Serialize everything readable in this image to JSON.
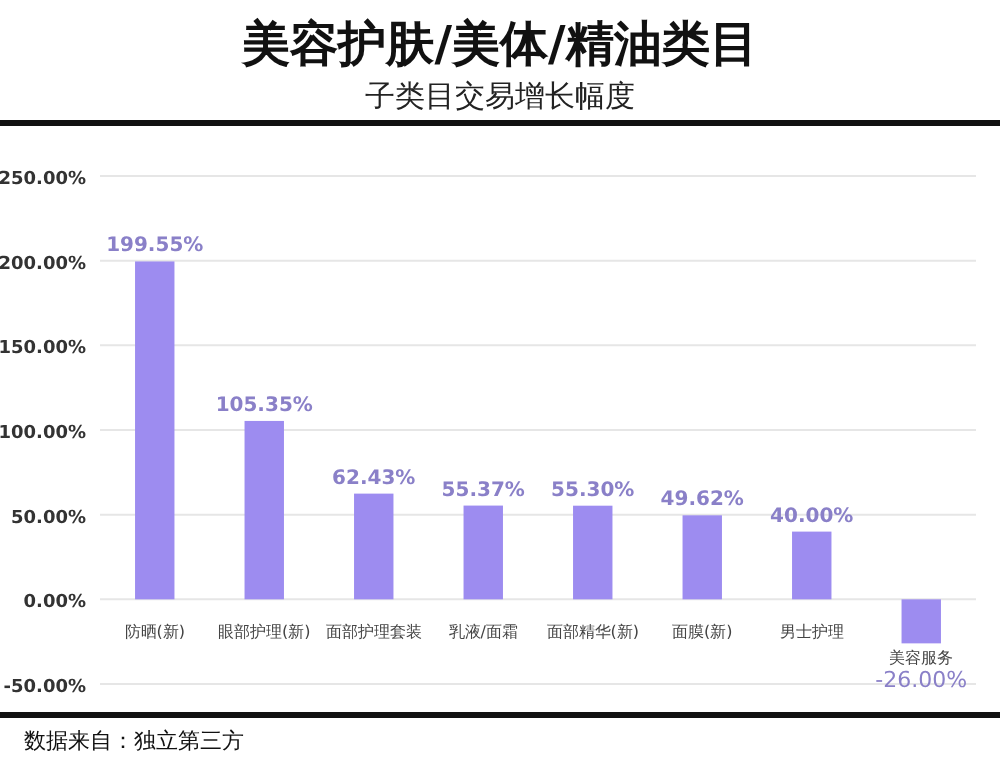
{
  "chart_data": {
    "type": "bar",
    "title": "美容护肤/美体/精油类目",
    "subtitle": "子类目交易增长幅度",
    "categories": [
      "防晒(新)",
      "眼部护理(新)",
      "面部护理套装",
      "乳液/面霜",
      "面部精华(新)",
      "面膜(新)",
      "男士护理",
      "美容服务"
    ],
    "values": [
      199.55,
      105.35,
      62.43,
      55.37,
      55.3,
      49.62,
      40.0,
      -26.0
    ],
    "value_labels": [
      "199.55%",
      "105.35%",
      "62.43%",
      "55.37%",
      "55.30%",
      "49.62%",
      "40.00%",
      "-26.00%"
    ],
    "color": "#9d8cf0",
    "ylim": [
      -50,
      250
    ],
    "yticks": [
      {
        "value": -50,
        "label": "-50.00%"
      },
      {
        "value": 0,
        "label": "0.00%"
      },
      {
        "value": 50,
        "label": "50.00%"
      },
      {
        "value": 100,
        "label": "100.00%"
      },
      {
        "value": 150,
        "label": "150.00%"
      },
      {
        "value": 200,
        "label": "200.00%"
      },
      {
        "value": 250,
        "label": "250.00%"
      }
    ],
    "grid": "y",
    "annotations": [
      "数据来自：独立第三方"
    ]
  }
}
